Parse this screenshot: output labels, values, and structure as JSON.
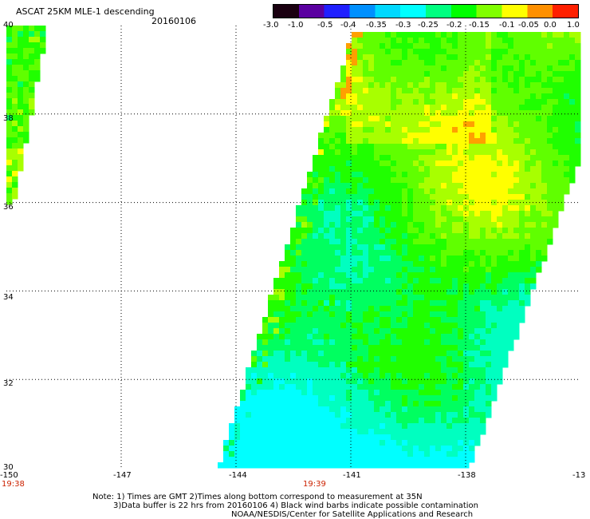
{
  "header": {
    "title": "ASCAT 25KM MLE-1 descending",
    "date": "20160106"
  },
  "colorbar": {
    "labels": [
      "-3.0",
      "-1.0",
      "-0.5",
      "-0.4",
      "-0.35",
      "-0.3",
      "-0.25",
      "-0.2",
      "-0.15",
      "-0.1",
      "-0.05",
      "0.0",
      "1.0"
    ],
    "colors": [
      "#1a0010",
      "#5a00a0",
      "#2020ff",
      "#0090ff",
      "#00d8ff",
      "#00ffff",
      "#00ff80",
      "#00ff00",
      "#80ff00",
      "#ffff00",
      "#ff9000",
      "#ff2000"
    ]
  },
  "axes": {
    "x_ticks": [
      "-150",
      "-147",
      "-144",
      "-141",
      "-138",
      "-13"
    ],
    "y_ticks": [
      "40",
      "38",
      "36",
      "34",
      "32",
      "30"
    ],
    "lon_range": [
      -150,
      -135
    ],
    "lat_range": [
      30,
      40
    ]
  },
  "times": {
    "left": "19:38",
    "center": "19:39"
  },
  "notes": {
    "line1": "Note: 1) Times are GMT 2)Times along bottom correspond to measurement at 35N",
    "line2": "3)Data buffer is 22 hrs from 20160106 4) Black wind barbs indicate possible contamination",
    "line3": "NOAA/NESDIS/Center for Satellite Applications and Research"
  },
  "colors": {
    "time_label": "#cc2200",
    "grid": "#000000"
  }
}
